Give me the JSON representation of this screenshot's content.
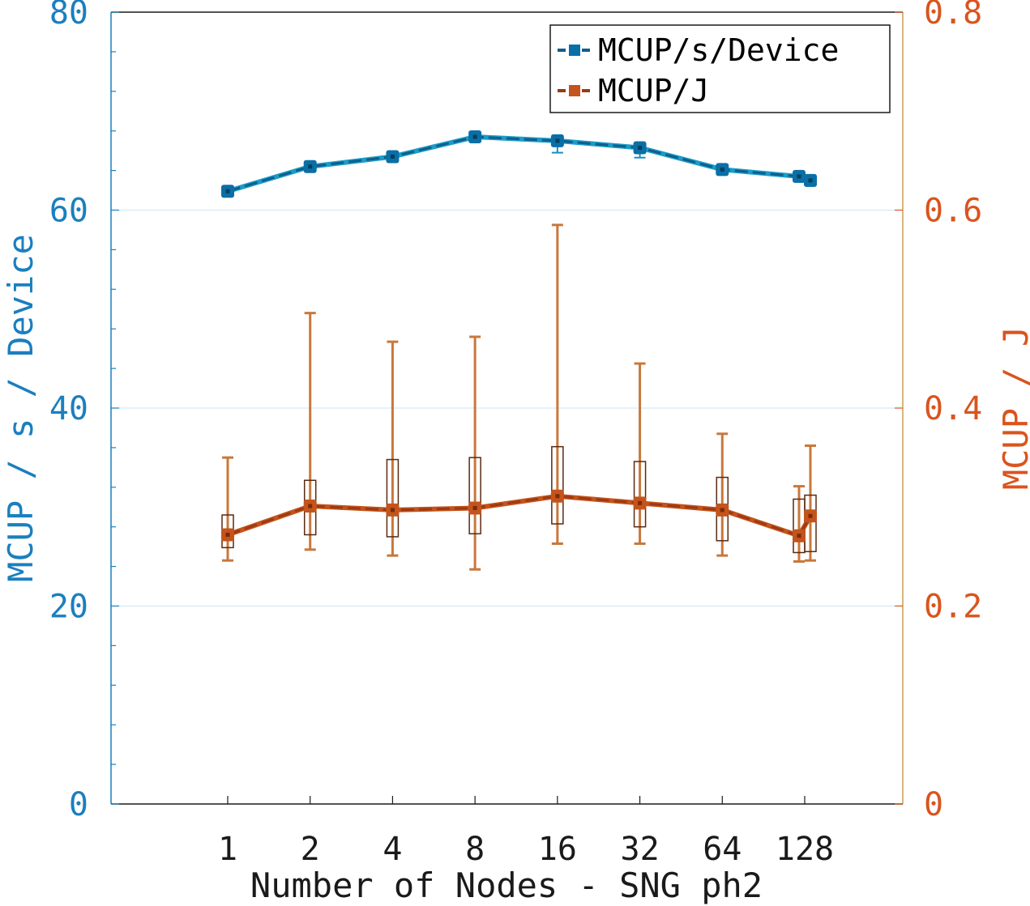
{
  "chart_data": {
    "type": "line",
    "x_categories": [
      "1",
      "2",
      "4",
      "8",
      "16",
      "32",
      "64",
      "128"
    ],
    "x_values": [
      1,
      2,
      4,
      8,
      16,
      32,
      64,
      128,
      128
    ],
    "xlabel": "Number of Nodes - SNG ph2",
    "y_left": {
      "label": "MCUP / s / Device",
      "lim": [
        0,
        80
      ],
      "ticks": [
        0,
        20,
        40,
        60,
        80
      ],
      "tick_labels": [
        "0",
        "20",
        "40",
        "60",
        "80"
      ],
      "color": "#1a7fbf"
    },
    "y_right": {
      "label": "MCUP / J",
      "lim": [
        0,
        0.8
      ],
      "ticks": [
        0,
        0.2,
        0.4,
        0.6,
        0.8
      ],
      "tick_labels": [
        "0",
        "0.2",
        "0.4",
        "0.6",
        "0.8"
      ],
      "color": "#d9541e"
    },
    "grid": true,
    "legend_position": "top-right",
    "series": [
      {
        "name": "MCUP/s/Device",
        "axis": "left",
        "line_color": "#0f5e8c",
        "marker_color": "#0a6fa6",
        "values": [
          61.9,
          64.4,
          65.4,
          67.4,
          67.0,
          66.3,
          64.1,
          63.4,
          63.0
        ],
        "err_low": [
          61.7,
          64.2,
          65.1,
          67.2,
          65.8,
          65.3,
          63.9,
          63.2,
          62.8
        ],
        "err_high": [
          62.1,
          64.7,
          65.7,
          67.7,
          67.4,
          66.6,
          64.4,
          63.6,
          63.3
        ]
      },
      {
        "name": "MCUP/J",
        "axis": "right",
        "line_color": "#9c3a12",
        "marker_color": "#c4541c",
        "whisker_color": "#c8783c",
        "box_color": "#5a2a10",
        "values": [
          0.272,
          0.301,
          0.297,
          0.299,
          0.311,
          0.304,
          0.297,
          0.271,
          0.291
        ],
        "whisker_low": [
          0.246,
          0.257,
          0.251,
          0.237,
          0.263,
          0.263,
          0.251,
          0.245,
          0.246
        ],
        "whisker_high": [
          0.35,
          0.496,
          0.467,
          0.472,
          0.585,
          0.445,
          0.374,
          0.321,
          0.362
        ],
        "box_low": [
          0.259,
          0.272,
          0.27,
          0.273,
          0.283,
          0.28,
          0.266,
          0.254,
          0.255
        ],
        "box_high": [
          0.292,
          0.327,
          0.348,
          0.35,
          0.361,
          0.346,
          0.33,
          0.308,
          0.312
        ]
      }
    ]
  }
}
